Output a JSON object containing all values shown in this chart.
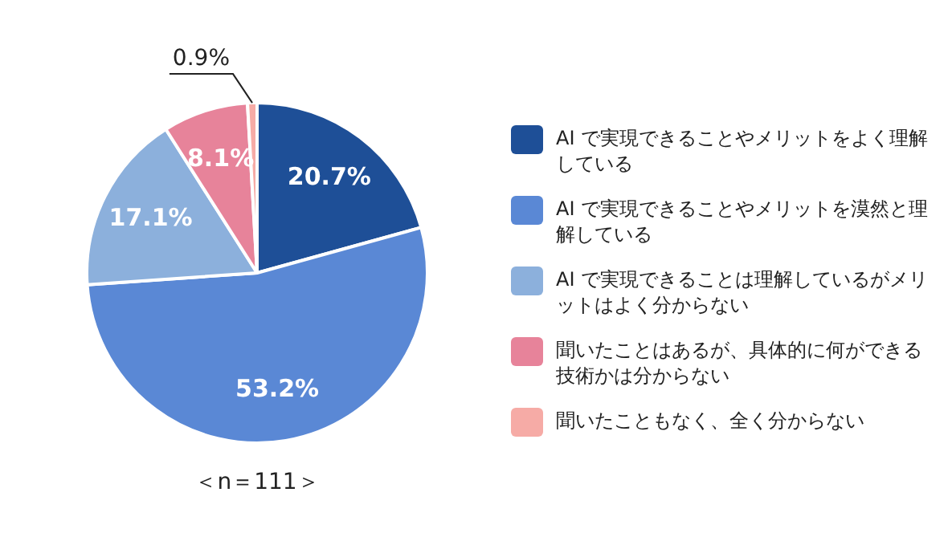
{
  "chart_data": {
    "type": "pie",
    "categories": [
      "AI で実現できることやメリットをよく理解している",
      "AI で実現できることやメリットを漠然と理解している",
      "AI で実現できることは理解しているがメリットはよく分からない",
      "聞いたことはあるが、具体的に何ができる技術かは分からない",
      "聞いたこともなく、全く分からない"
    ],
    "values": [
      20.7,
      53.2,
      17.1,
      8.1,
      0.9
    ],
    "colors": [
      "#1e4f97",
      "#5a88d5",
      "#8cb0dc",
      "#e7839a",
      "#f6aba6"
    ],
    "value_labels": [
      "20.7%",
      "53.2%",
      "17.1%",
      "8.1%",
      "0.9%"
    ],
    "legend": "right",
    "annotations": [
      "＜n＝111＞"
    ]
  }
}
